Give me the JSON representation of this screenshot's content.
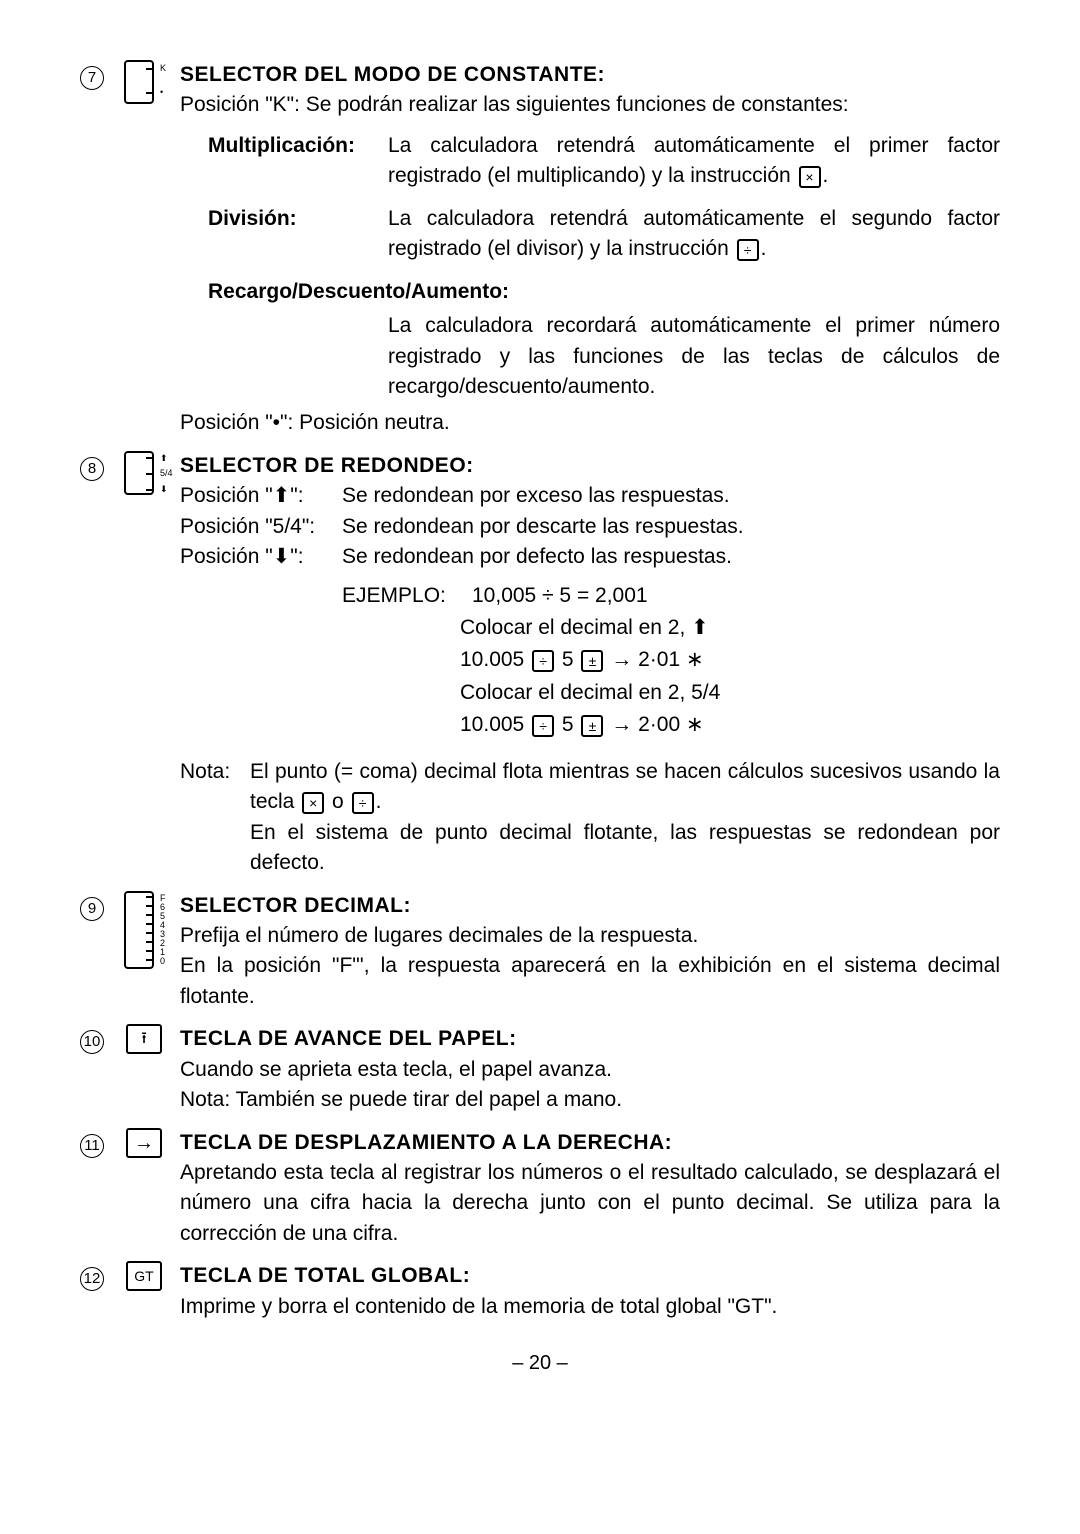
{
  "page_number": "– 20 –",
  "circled": {
    "s7": "7",
    "s8": "8",
    "s9": "9",
    "s10": "10",
    "s11": "11",
    "s12": "12"
  },
  "sec7": {
    "heading": "SELECTOR DEL MODO DE CONSTANTE:",
    "line1": "Posición \"K\": Se podrán realizar las siguientes funciones de constantes:",
    "mult_label": "Multiplicación:",
    "mult_body_a": "La calculadora retendrá automáticamente el primer factor registrado (el multiplicando) y la instrucción ",
    "div_label": "División:",
    "div_body_a": "La calculadora retendrá automáticamente el segundo factor registrado (el divisor) y la instrucción ",
    "rda_label": "Recargo/Descuento/Aumento:",
    "rda_body": "La calculadora recordará automáticamente el primer número registrado y las funciones de las teclas de cálculos de recargo/descuento/aumento.",
    "neutral": "Posición \"•\":  Posición neutra.",
    "switch_labels": {
      "k": "K",
      "dot": "•"
    }
  },
  "sec8": {
    "heading": "SELECTOR DE REDONDEO:",
    "p_up_label": "Posición \"⬆\":",
    "p_up_body": "Se redondean por exceso las respuestas.",
    "p_54_label": "Posición \"5/4\":",
    "p_54_body": "Se redondean por descarte las respuestas.",
    "p_dn_label": "Posición \"⬇\":",
    "p_dn_body": "Se redondean por defecto las respuestas.",
    "ej_label": "EJEMPLO:",
    "ej_eq": "10,005 ÷ 5 = 2,001",
    "ej_l1": "Colocar el decimal en 2, ⬆",
    "ej_l2a": "10.005 ",
    "ej_l2b": " 5 ",
    "ej_l2c": "  →  2·01  ∗",
    "ej_l3": "Colocar el decimal en 2, 5/4",
    "ej_l4c": "  →  2·00  ∗",
    "nota_label": "Nota:",
    "nota1a": "El punto (= coma) decimal flota mientras se hacen cálculos sucesivos usando la tecla ",
    "nota1b": " o ",
    "nota2": "En el sistema de punto decimal flotante, las respuestas se redondean por defecto.",
    "switch_labels": {
      "up": "⬆",
      "mid": "5/4",
      "dn": "⬇"
    },
    "keys": {
      "mul": "×",
      "div": "÷",
      "pm": "±"
    }
  },
  "sec9": {
    "heading": "SELECTOR DECIMAL:",
    "l1": "Prefija el número de lugares decimales de la respuesta.",
    "l2": "En la posición \"F\"', la respuesta aparecerá en la exhibición en el sistema decimal flotante.",
    "switch_labels": [
      "F",
      "6",
      "5",
      "4",
      "3",
      "2",
      "1",
      "0"
    ]
  },
  "sec10": {
    "heading": "TECLA DE AVANCE DEL PAPEL:",
    "l1": "Cuando se aprieta esta tecla, el papel avanza.",
    "l2": "Nota: También se puede tirar del papel a mano.",
    "key": "⭱"
  },
  "sec11": {
    "heading": "TECLA DE DESPLAZAMIENTO A LA DERECHA:",
    "body": "Apretando esta tecla al registrar los números o el resultado calculado, se desplazará el número una cifra hacia la derecha junto con el punto decimal. Se utiliza para la corrección de una cifra.",
    "key": "→"
  },
  "sec12": {
    "heading": "TECLA DE TOTAL GLOBAL:",
    "body": "Imprime y borra el contenido de la memoria de total global \"GT\".",
    "key": "GT"
  }
}
